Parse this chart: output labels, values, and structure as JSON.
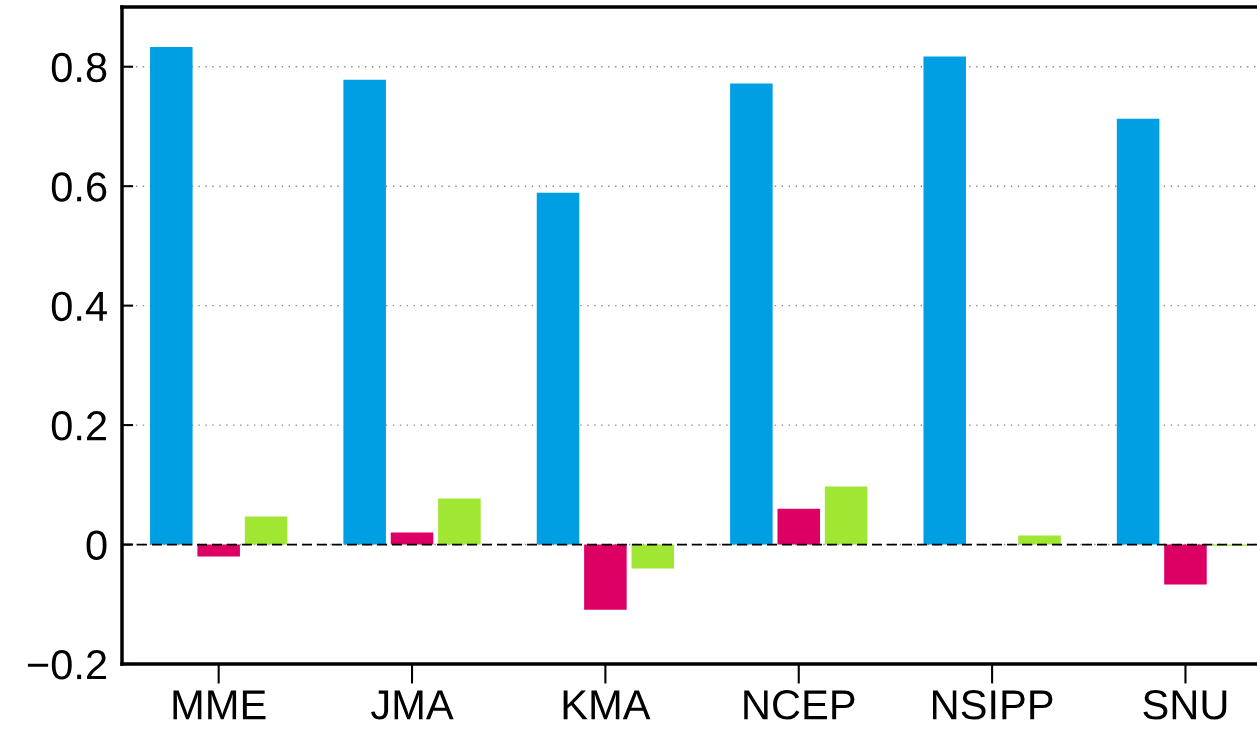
{
  "chart_data": {
    "type": "bar",
    "categories": [
      "MME",
      "JMA",
      "KMA",
      "NCEP",
      "NSIPP",
      "SNU"
    ],
    "series": [
      {
        "color": "#009fe3",
        "values": [
          0.833,
          0.778,
          0.589,
          0.772,
          0.817,
          0.713
        ]
      },
      {
        "color": "#dc0064",
        "values": [
          -0.02,
          0.02,
          -0.109,
          0.06,
          0.0,
          -0.067
        ]
      },
      {
        "color": "#a0e632",
        "values": [
          0.047,
          0.077,
          -0.04,
          0.097,
          0.015,
          -0.002
        ]
      }
    ],
    "ylim": [
      -0.2,
      0.9
    ],
    "yticks": [
      {
        "value": -0.2,
        "label": "−0.2"
      },
      0,
      0.2,
      0.4,
      0.6,
      0.8
    ],
    "grid": "y",
    "ref_lines": [
      {
        "axis": "y",
        "value": 0,
        "color": "#000000",
        "line_style": "dashed"
      }
    ]
  }
}
